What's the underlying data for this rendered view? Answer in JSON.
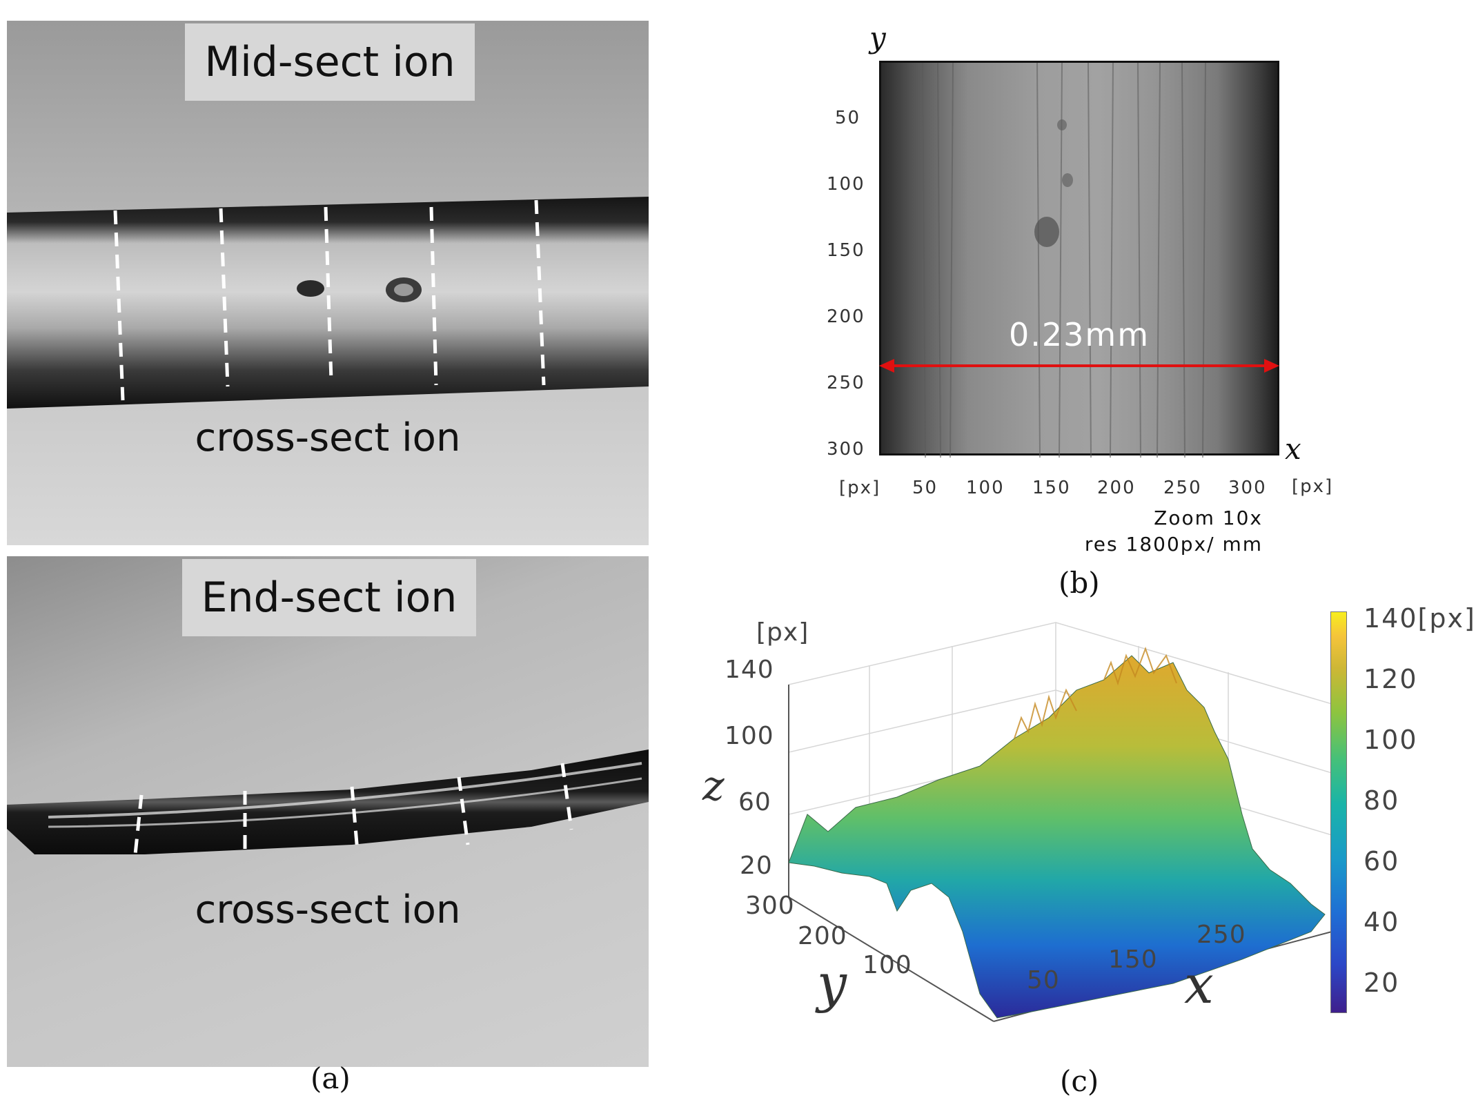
{
  "panel_a": {
    "mid_label": "Mid-sect ion",
    "mid_cross_section": "cross-sect ion",
    "end_label": "End-sect ion",
    "end_cross_section": "cross-sect ion",
    "caption": "(a)"
  },
  "panel_b": {
    "y_axis_label": "y",
    "x_axis_label": "x",
    "y_ticks": [
      "50",
      "100",
      "150",
      "200",
      "250",
      "300"
    ],
    "x_ticks": [
      "50",
      "100",
      "150",
      "200",
      "250",
      "300"
    ],
    "y_unit": "[px]",
    "x_unit": "[px]",
    "scale_bar": "0.23mm",
    "zoom_note": "Zoom 10x",
    "res_note": "res 1800px/ mm",
    "caption": "(b)",
    "scale_bar_color": "#e01010"
  },
  "panel_c": {
    "z_unit": "[px]",
    "z_label": "z",
    "y_label": "y",
    "x_label": "x",
    "z_ticks": [
      "140",
      "100",
      "60",
      "20"
    ],
    "y_ticks": [
      "300",
      "200",
      "100"
    ],
    "x_ticks": [
      "50",
      "150",
      "250"
    ],
    "colorbar_ticks": [
      "140[px]",
      "120",
      "100",
      "80",
      "60",
      "40",
      "20"
    ],
    "caption": "(c)"
  }
}
